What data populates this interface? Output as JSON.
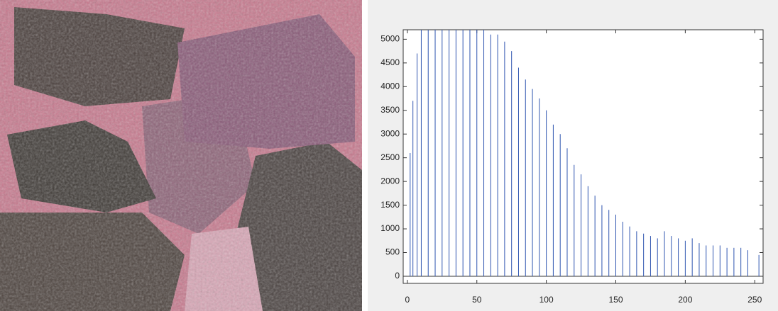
{
  "chart_data": {
    "type": "stem",
    "x": [
      2,
      4,
      7,
      10,
      15,
      20,
      25,
      30,
      35,
      40,
      45,
      50,
      55,
      60,
      65,
      70,
      75,
      80,
      85,
      90,
      95,
      100,
      105,
      110,
      115,
      120,
      125,
      130,
      135,
      140,
      145,
      150,
      155,
      160,
      165,
      170,
      175,
      180,
      185,
      190,
      195,
      200,
      205,
      210,
      215,
      220,
      225,
      230,
      235,
      240,
      245,
      253
    ],
    "values": [
      2600,
      3700,
      4700,
      5200,
      5200,
      5200,
      5200,
      5200,
      5200,
      5200,
      5200,
      5200,
      5200,
      5100,
      5100,
      4950,
      4750,
      4400,
      4150,
      3950,
      3750,
      3500,
      3200,
      3000,
      2700,
      2350,
      2150,
      1900,
      1700,
      1500,
      1400,
      1300,
      1150,
      1050,
      950,
      900,
      850,
      800,
      950,
      850,
      800,
      750,
      800,
      700,
      650,
      650,
      650,
      600,
      600,
      600,
      550,
      450
    ],
    "color": "#2f55b0",
    "xlim": [
      -3,
      256
    ],
    "ylim": [
      -150,
      5200
    ],
    "xticks": [
      0,
      50,
      100,
      150,
      200,
      250
    ],
    "yticks": [
      0,
      500,
      1000,
      1500,
      2000,
      2500,
      3000,
      3500,
      4000,
      4500,
      5000
    ]
  }
}
